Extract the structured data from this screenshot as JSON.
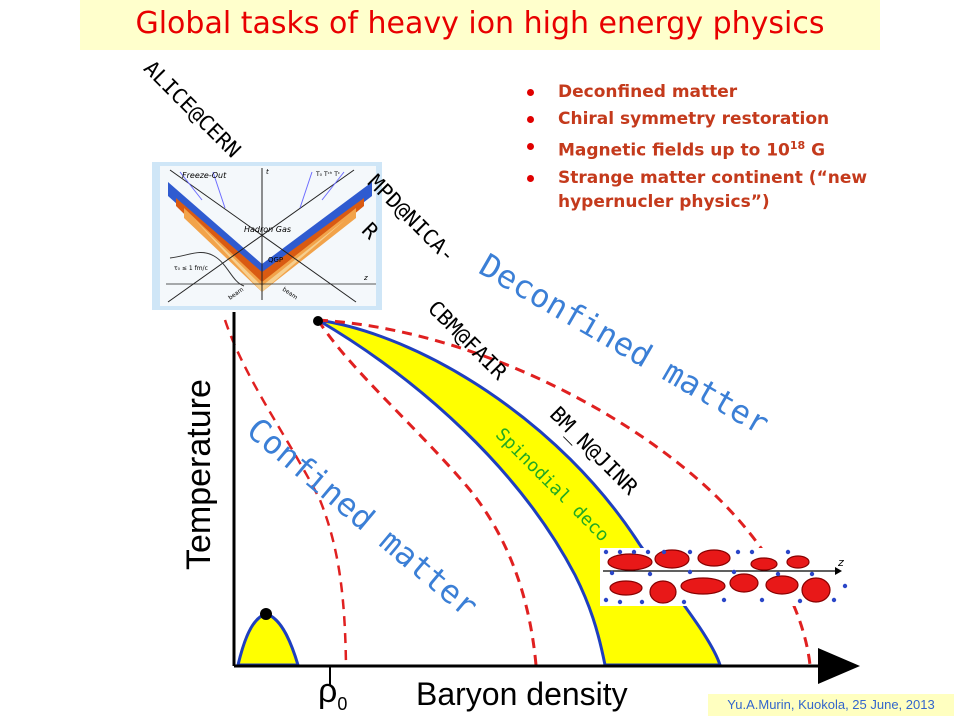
{
  "title": "Global tasks of heavy ion high energy physics",
  "bullets": [
    {
      "text": "Deconfined matter"
    },
    {
      "text": "Chiral symmetry restoration"
    },
    {
      "text": "Magnetic fields up to 10",
      "sup": "18",
      "suffix": " G"
    },
    {
      "text": "Strange matter continent (“new hypernucler physics”)"
    }
  ],
  "experiments": {
    "alice": "ALICE@CERN",
    "mpd": "MPD@NICA-",
    "r_partial": "R",
    "cbm": "CBM@FAIR",
    "bmn": "BM_N@JINR"
  },
  "regions": {
    "deconfined": "Deconfined matter",
    "confined": "Confined matter",
    "spinodial": "Spinodial deco"
  },
  "axes": {
    "y_label": "Temperature",
    "x_label": "Baryon density",
    "rho0": "ρ",
    "rho0_sub": "0"
  },
  "inset": {
    "freeze_out": "Freeze-Out",
    "hadron_gas": "Hadron Gas",
    "qgp": "QGP",
    "tau": "τ₀ ≤ 1 fm/c",
    "beam_left": "beam",
    "beam_right": "beam",
    "z": "z",
    "t": "t",
    "tfo": "T₀ Tᶜʰ Tᶜ"
  },
  "tube_axis": "z",
  "footer": "Yu.A.Murin, Kuokola, 25 June, 2013",
  "colors": {
    "title": "#e80000",
    "title_bg": "#ffffcc",
    "bullet_text": "#c43a1c",
    "region_label": "#3b7fd6",
    "spinodial": "#22aa22",
    "fill": "#ffff00",
    "blue_line": "#1f3fbf",
    "dashed": "#e02020"
  }
}
